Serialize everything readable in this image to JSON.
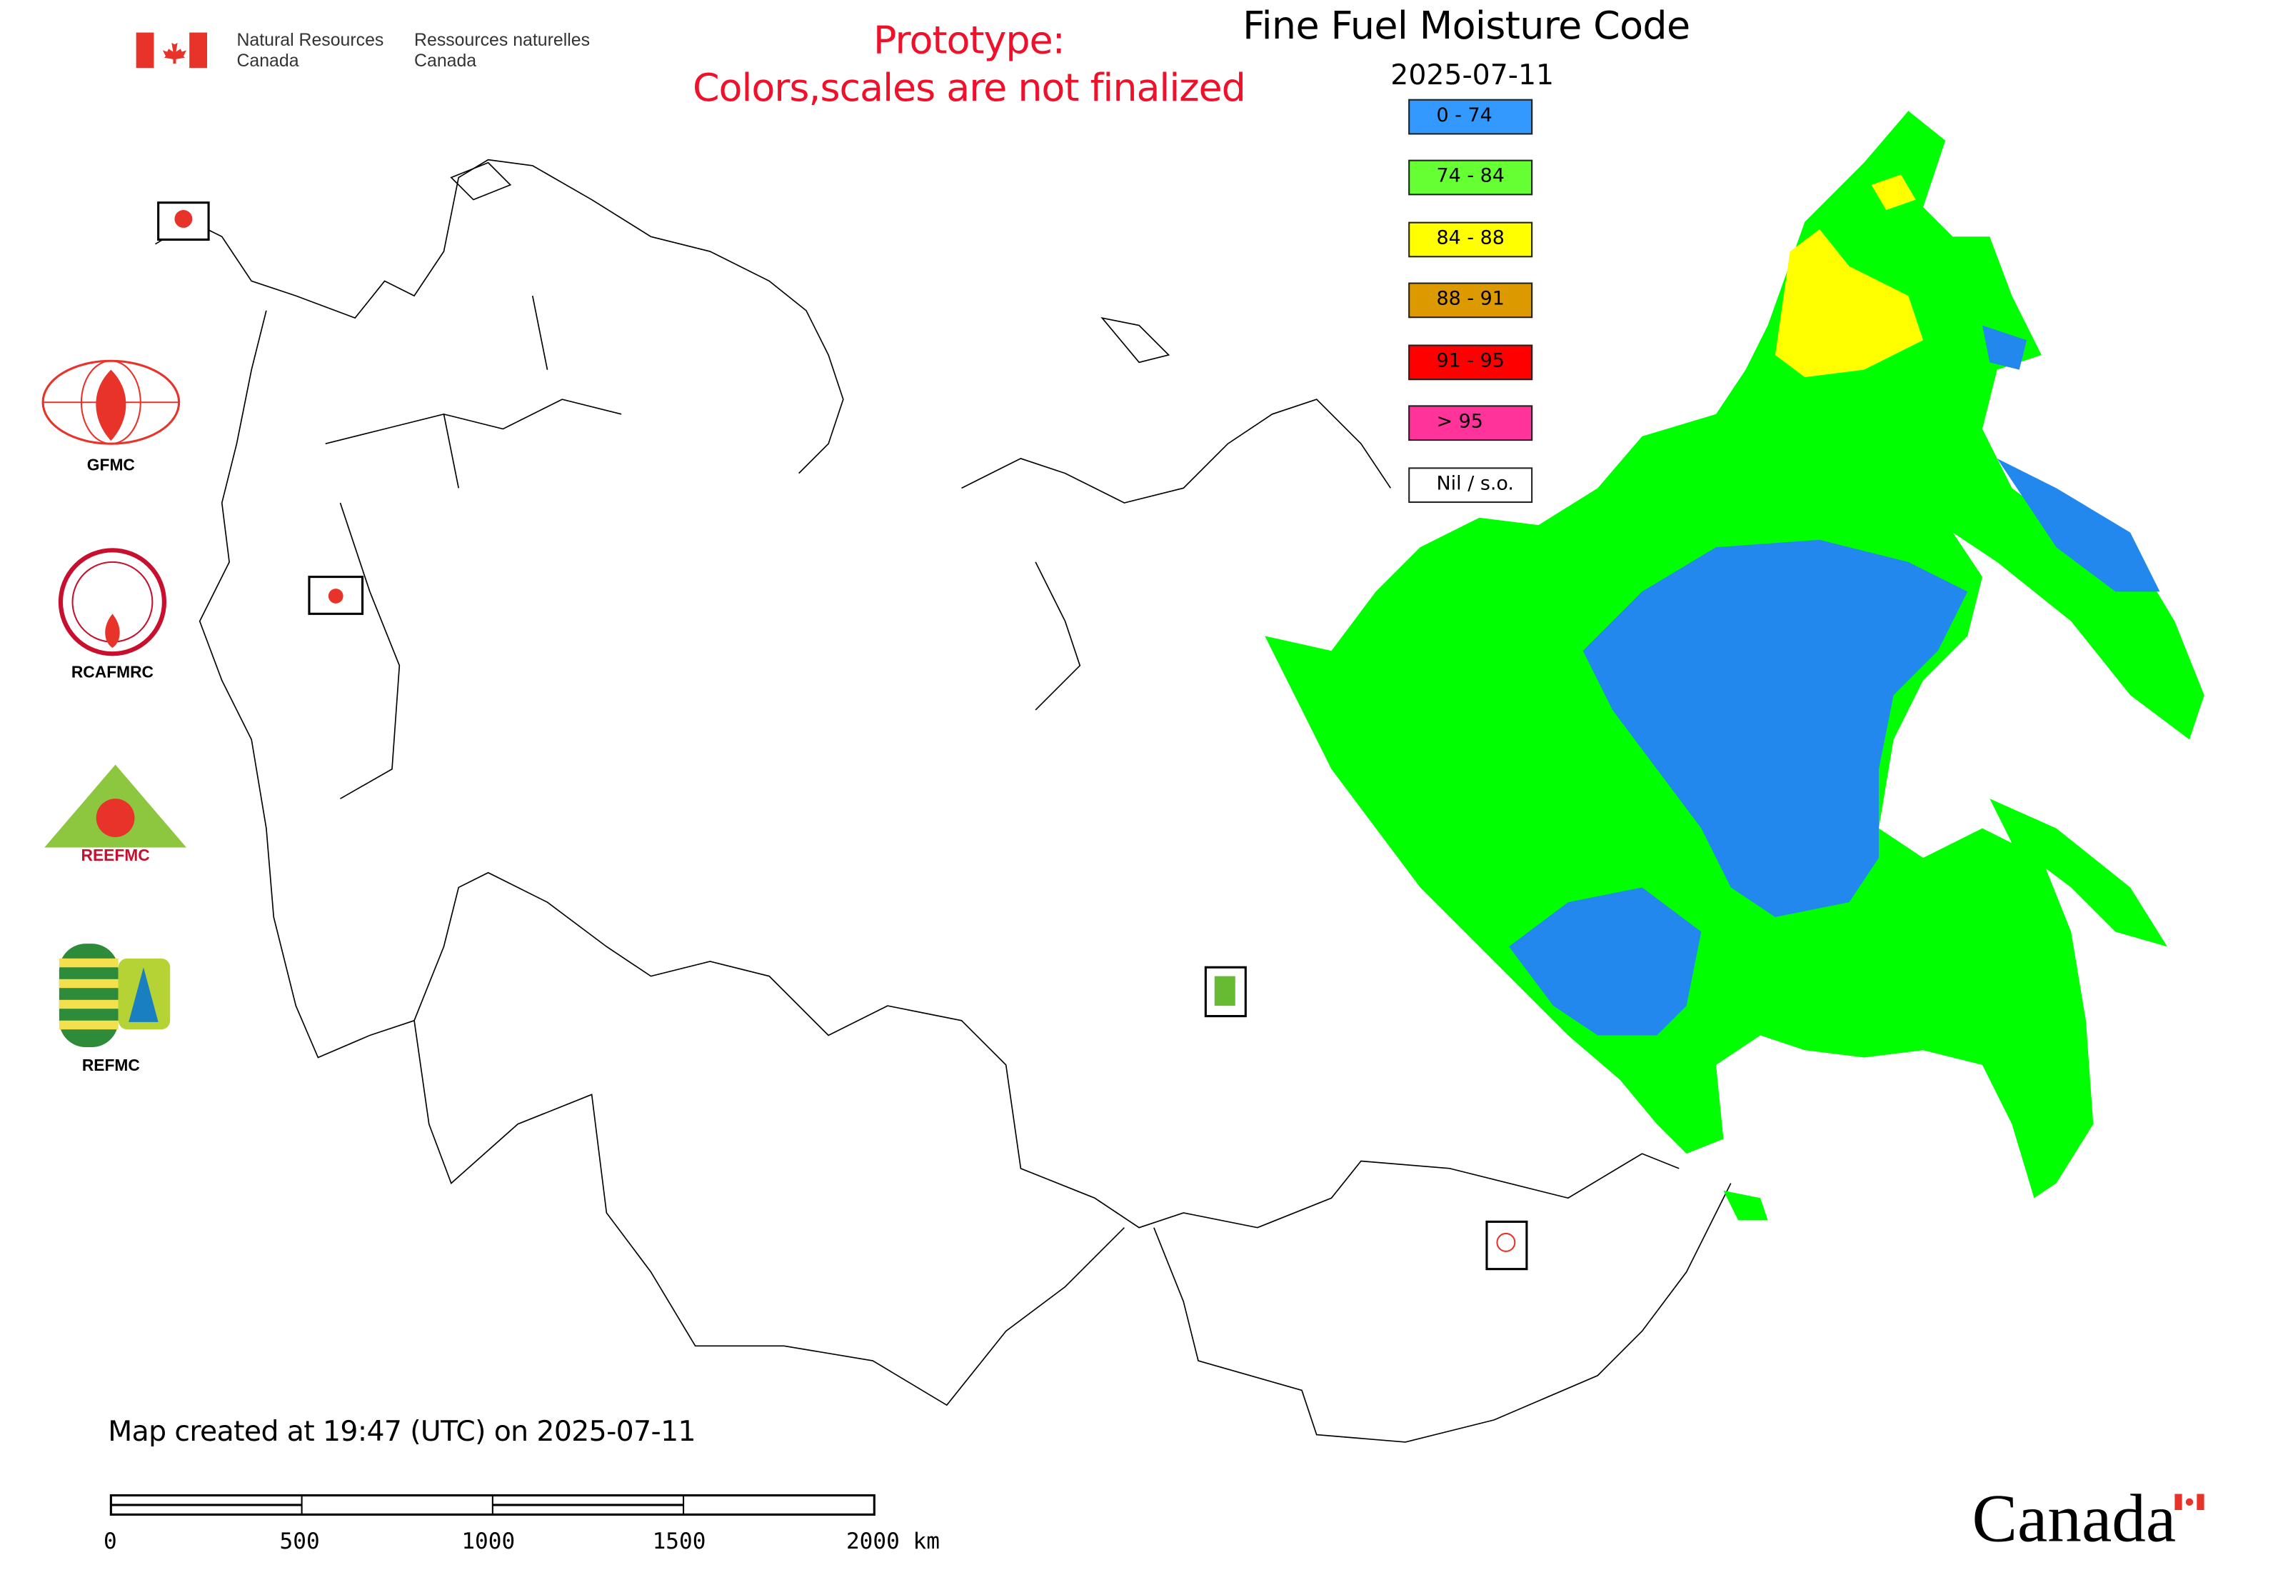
{
  "header": {
    "agency_en_line1": "Natural Resources",
    "agency_en_line2": "Canada",
    "agency_fr_line1": "Ressources naturelles",
    "agency_fr_line2": "Canada",
    "prototype_line1": "Prototype:",
    "prototype_line2": "Colors,scales are not finalized",
    "title": "Fine Fuel Moisture Code",
    "date": "2025-07-11"
  },
  "legend": [
    {
      "label": "0 - 74",
      "color": "#3399ff"
    },
    {
      "label": "74 - 84",
      "color": "#66ff33"
    },
    {
      "label": "84 - 88",
      "color": "#ffff00"
    },
    {
      "label": "88 - 91",
      "color": "#dd9900"
    },
    {
      "label": "91 - 95",
      "color": "#ff0000"
    },
    {
      "label": "> 95",
      "color": "#ff3399"
    },
    {
      "label": "Nil / s.o.",
      "color": "#ffffff"
    }
  ],
  "logos": {
    "gfmc": "GFMC",
    "rcafmrc": "RCAFMRC",
    "reefmc": "REEFMC",
    "refmc": "REFMC"
  },
  "footer": {
    "created": "Map created at 19:47 (UTC) on 2025-07-11",
    "scale_ticks": [
      "0",
      "500",
      "1000",
      "1500",
      "2000 km"
    ]
  },
  "wordmark": "Canada",
  "colors": {
    "accent_red": "#f0102a",
    "map_green": "#00ff00",
    "map_blue": "#2288ee",
    "map_yellow": "#ffff00"
  }
}
